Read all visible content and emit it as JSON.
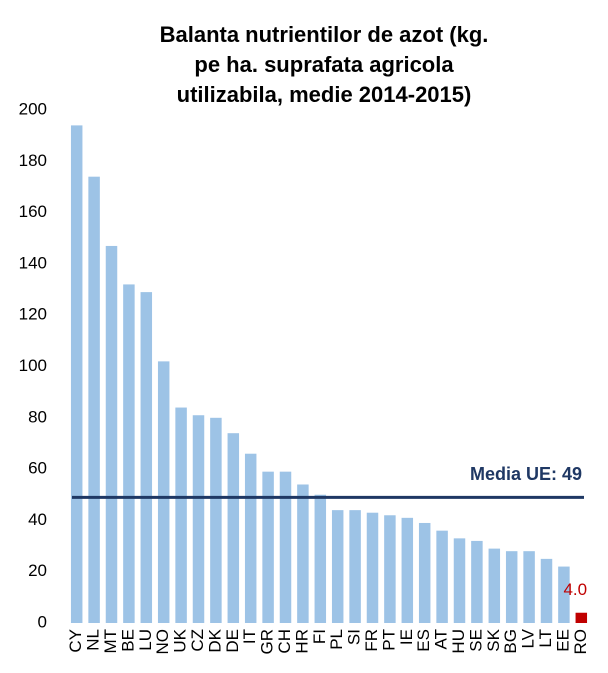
{
  "chart_data": {
    "type": "bar",
    "title": [
      "Balanta nutrientilor de azot (kg.",
      "pe ha. suprafata agricola",
      "utilizabila, medie 2014-2015)"
    ],
    "categories": [
      "CY",
      "NL",
      "MT",
      "BE",
      "LU",
      "NO",
      "UK",
      "CZ",
      "DK",
      "DE",
      "IT",
      "GR",
      "CH",
      "HR",
      "FI",
      "PL",
      "SI",
      "FR",
      "PT",
      "IE",
      "ES",
      "AT",
      "HU",
      "SE",
      "SK",
      "BG",
      "LV",
      "LT",
      "EE",
      "RO"
    ],
    "values": [
      194,
      174,
      147,
      132,
      129,
      102,
      84,
      81,
      80,
      74,
      66,
      59,
      59,
      54,
      50,
      44,
      44,
      43,
      42,
      41,
      39,
      36,
      33,
      32,
      29,
      28,
      28,
      25,
      22,
      4
    ],
    "colors": [
      "#9dc3e6",
      "#9dc3e6",
      "#9dc3e6",
      "#9dc3e6",
      "#9dc3e6",
      "#9dc3e6",
      "#9dc3e6",
      "#9dc3e6",
      "#9dc3e6",
      "#9dc3e6",
      "#9dc3e6",
      "#9dc3e6",
      "#9dc3e6",
      "#9dc3e6",
      "#9dc3e6",
      "#9dc3e6",
      "#9dc3e6",
      "#9dc3e6",
      "#9dc3e6",
      "#9dc3e6",
      "#9dc3e6",
      "#9dc3e6",
      "#9dc3e6",
      "#9dc3e6",
      "#9dc3e6",
      "#9dc3e6",
      "#9dc3e6",
      "#9dc3e6",
      "#9dc3e6",
      "#c00000"
    ],
    "value_labels": [
      null,
      null,
      null,
      null,
      null,
      null,
      null,
      null,
      null,
      null,
      null,
      null,
      null,
      null,
      null,
      null,
      null,
      null,
      null,
      null,
      null,
      null,
      null,
      null,
      null,
      null,
      null,
      null,
      null,
      "4.0"
    ],
    "ylim": [
      0,
      200
    ],
    "yticks": [
      0,
      20,
      40,
      60,
      80,
      100,
      120,
      140,
      160,
      180,
      200
    ],
    "grid": false,
    "reference_line": {
      "value": 49,
      "label": "Media UE: 49",
      "color": "#1f3864"
    }
  }
}
